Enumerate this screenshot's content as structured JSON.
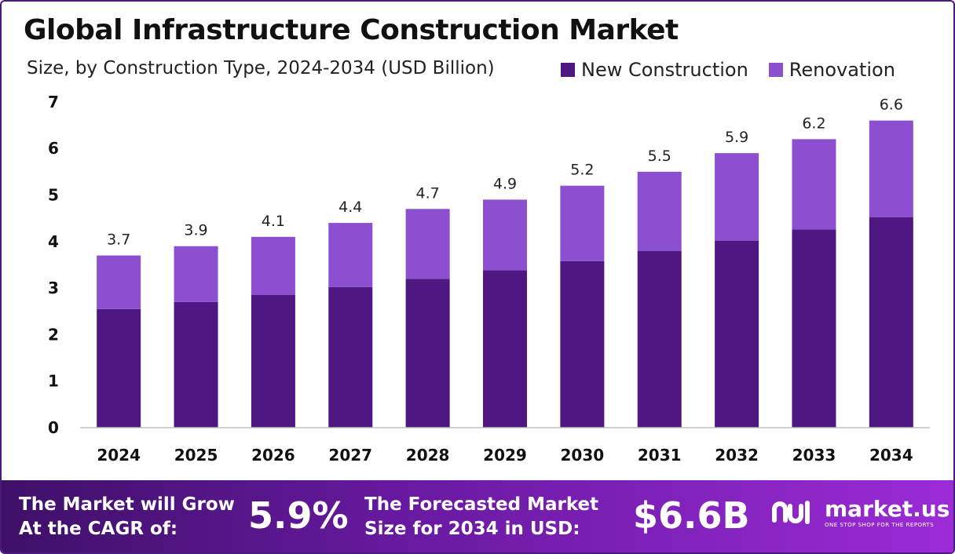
{
  "chart_data": {
    "type": "bar",
    "stacked": true,
    "title": "Global Infrastructure Construction Market",
    "subtitle": "Size, by Construction Type, 2024-2034 (USD Billion)",
    "categories": [
      "2024",
      "2025",
      "2026",
      "2027",
      "2028",
      "2029",
      "2030",
      "2031",
      "2032",
      "2033",
      "2034"
    ],
    "series": [
      {
        "name": "New Construction",
        "color": "#4e1781",
        "values": [
          2.55,
          2.7,
          2.85,
          3.02,
          3.2,
          3.38,
          3.58,
          3.8,
          4.02,
          4.26,
          4.52
        ]
      },
      {
        "name": "Renovation",
        "color": "#8c4fd0",
        "values": [
          1.15,
          1.2,
          1.25,
          1.38,
          1.5,
          1.52,
          1.62,
          1.7,
          1.88,
          1.94,
          2.08
        ]
      }
    ],
    "totals": [
      "3.7",
      "3.9",
      "4.1",
      "4.4",
      "4.7",
      "4.9",
      "5.2",
      "5.5",
      "5.9",
      "6.2",
      "6.6"
    ],
    "yticks": [
      "0",
      "1",
      "2",
      "3",
      "4",
      "5",
      "6",
      "7"
    ],
    "ylim": [
      0,
      7
    ],
    "grid": false,
    "legend_position": "top-right"
  },
  "footer": {
    "cagr_text_line1": "The Market will Grow",
    "cagr_text_line2": "At the CAGR of:",
    "cagr_value": "5.9%",
    "forecast_text_line1": "The Forecasted Market",
    "forecast_text_line2": "Size for 2034 in USD:",
    "forecast_value": "$6.6B",
    "logo_name": "market.us",
    "logo_tagline": "ONE STOP SHOP FOR THE REPORTS"
  }
}
